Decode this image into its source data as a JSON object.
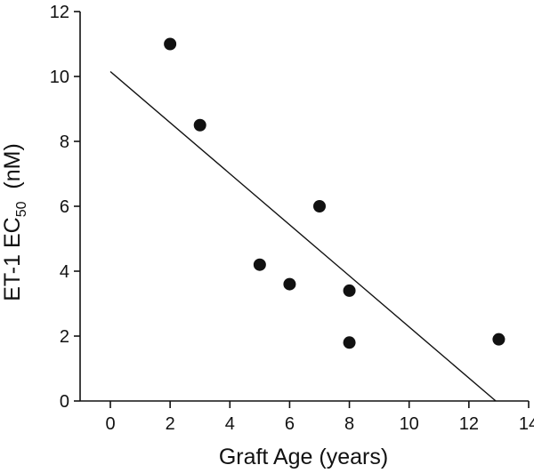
{
  "chart_data": {
    "type": "scatter",
    "xlabel": "Graft Age (years)",
    "ylabel": {
      "prefix": "ET-1 EC",
      "subscript": "50",
      "suffix": "  (nM)"
    },
    "xlim": [
      -1,
      14
    ],
    "ylim": [
      0,
      12
    ],
    "xticks": [
      0,
      2,
      4,
      6,
      8,
      10,
      12,
      14
    ],
    "yticks": [
      0,
      2,
      4,
      6,
      8,
      10,
      12
    ],
    "points": [
      {
        "x": 2,
        "y": 11.0
      },
      {
        "x": 3,
        "y": 8.5
      },
      {
        "x": 5,
        "y": 4.2
      },
      {
        "x": 6,
        "y": 3.6
      },
      {
        "x": 7,
        "y": 6.0
      },
      {
        "x": 8,
        "y": 3.4
      },
      {
        "x": 8,
        "y": 1.8
      },
      {
        "x": 13,
        "y": 1.9
      }
    ],
    "fit_line": {
      "x": [
        0,
        12.9
      ],
      "y": [
        10.15,
        0
      ]
    },
    "grid": false,
    "legend": "none"
  }
}
